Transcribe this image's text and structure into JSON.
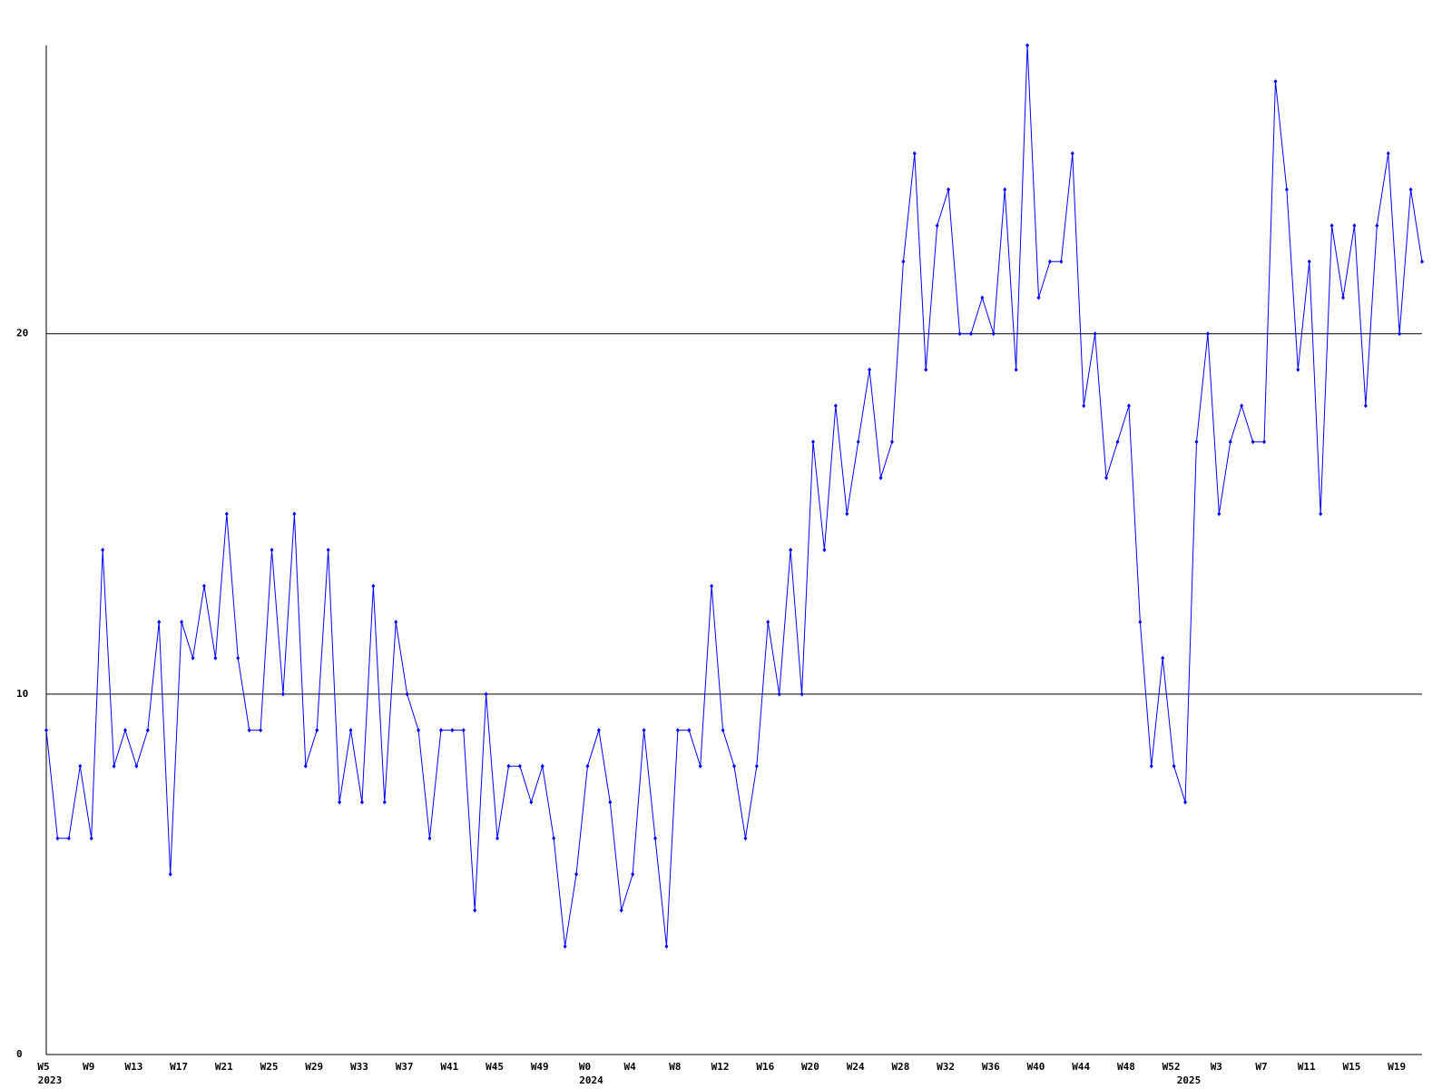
{
  "chart_data": {
    "type": "line",
    "categories": [
      "W5",
      null,
      null,
      null,
      "W9",
      null,
      null,
      null,
      "W13",
      null,
      null,
      null,
      "W17",
      null,
      null,
      null,
      "W21",
      null,
      null,
      null,
      "W25",
      null,
      null,
      null,
      "W29",
      null,
      null,
      null,
      "W33",
      null,
      null,
      null,
      "W37",
      null,
      null,
      null,
      "W41",
      null,
      null,
      null,
      "W45",
      null,
      null,
      null,
      "W49",
      null,
      null,
      null,
      "W0",
      null,
      null,
      null,
      "W4",
      null,
      null,
      null,
      "W8",
      null,
      null,
      null,
      "W12",
      null,
      null,
      null,
      "W16",
      null,
      null,
      null,
      "W20",
      null,
      null,
      null,
      "W24",
      null,
      null,
      null,
      "W28",
      null,
      null,
      null,
      "W32",
      null,
      null,
      null,
      "W36",
      null,
      null,
      null,
      "W40",
      null,
      null,
      null,
      "W44",
      null,
      null,
      null,
      "W48",
      null,
      null,
      null,
      "W52",
      null,
      null,
      null,
      "W3",
      null,
      null,
      null,
      "W7",
      null,
      null,
      null,
      "W11",
      null,
      null,
      null,
      "W15",
      null,
      null,
      null,
      "W19",
      null,
      null
    ],
    "category_years": [
      "2023",
      null,
      null,
      null,
      null,
      null,
      null,
      null,
      null,
      null,
      null,
      null,
      null,
      null,
      null,
      null,
      null,
      null,
      null,
      null,
      null,
      null,
      null,
      null,
      null,
      null,
      null,
      null,
      null,
      null,
      null,
      null,
      null,
      null,
      null,
      null,
      null,
      null,
      null,
      null,
      null,
      null,
      null,
      null,
      null,
      null,
      null,
      null,
      "2024",
      null,
      null,
      null,
      null,
      null,
      null,
      null,
      null,
      null,
      null,
      null,
      null,
      null,
      null,
      null,
      null,
      null,
      null,
      null,
      null,
      null,
      null,
      null,
      null,
      null,
      null,
      null,
      null,
      null,
      null,
      null,
      null,
      null,
      null,
      null,
      null,
      null,
      null,
      null,
      null,
      null,
      null,
      null,
      null,
      null,
      null,
      null,
      null,
      null,
      null,
      null,
      null,
      "2025",
      null,
      null,
      null,
      null,
      null,
      null,
      null,
      null,
      null,
      null,
      null,
      null,
      null,
      null,
      null,
      null,
      null,
      null,
      null,
      null,
      null
    ],
    "values": [
      9,
      6,
      6,
      8,
      6,
      14,
      8,
      9,
      8,
      9,
      12,
      5,
      12,
      11,
      13,
      11,
      15,
      11,
      9,
      9,
      14,
      10,
      15,
      8,
      9,
      14,
      7,
      9,
      7,
      13,
      7,
      12,
      10,
      9,
      6,
      9,
      9,
      9,
      4,
      10,
      6,
      8,
      8,
      7,
      8,
      6,
      3,
      5,
      8,
      9,
      7,
      4,
      5,
      9,
      6,
      3,
      9,
      9,
      8,
      13,
      9,
      8,
      6,
      8,
      12,
      10,
      14,
      10,
      17,
      14,
      18,
      15,
      17,
      19,
      16,
      17,
      22,
      25,
      19,
      23,
      24,
      20,
      20,
      21,
      20,
      24,
      19,
      28,
      21,
      22,
      22,
      25,
      18,
      20,
      16,
      17,
      18,
      12,
      8,
      11,
      8,
      7,
      17,
      20,
      15,
      17,
      18,
      17,
      17,
      27,
      24,
      19,
      22,
      15,
      23,
      21,
      23,
      18,
      23,
      25,
      20,
      24,
      22
    ],
    "color": "#0000ff",
    "ylim": [
      0,
      28
    ],
    "yticks": [
      0,
      10,
      20
    ],
    "grid": true
  }
}
